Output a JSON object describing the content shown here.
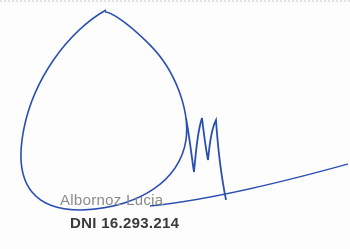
{
  "stamp": {
    "name": "Albornoz Lucia",
    "id": "DNI 16.293.214"
  }
}
